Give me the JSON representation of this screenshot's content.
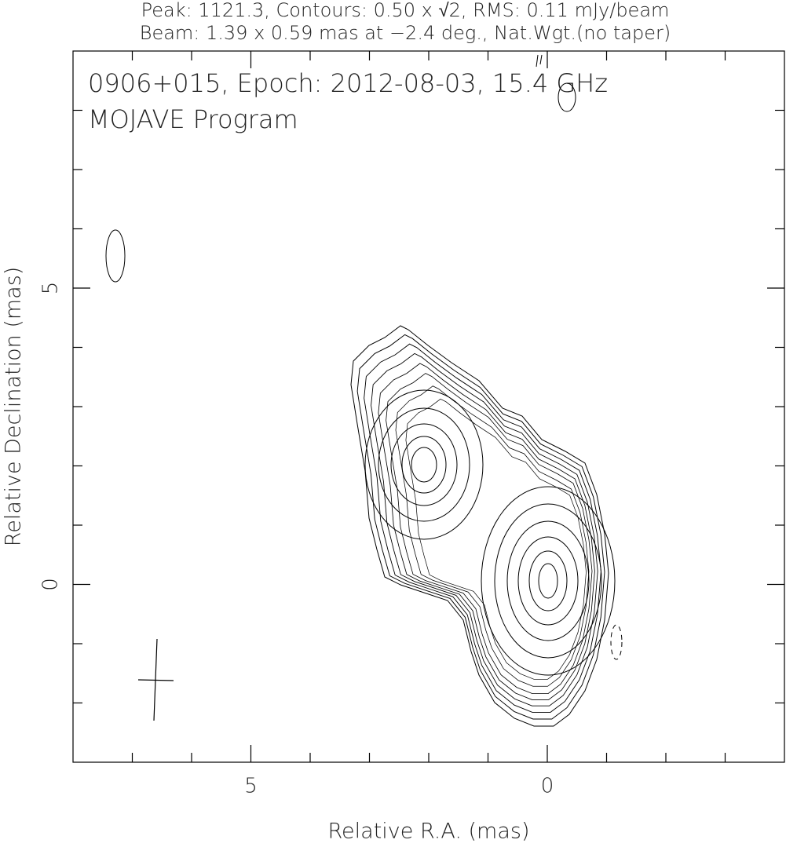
{
  "chart_data": {
    "type": "contour",
    "header": [
      "Peak: 1121.3, Contours: 0.50 x √2, RMS: 0.11 mJy/beam",
      "Beam: 1.39 x 0.59 mas at −2.4 deg., Nat.Wgt.(no taper)"
    ],
    "title": "0906+015, Epoch: 2012-08-03, 15.4 GHz",
    "subtitle": "MOJAVE Program",
    "xlabel": "Relative R.A. (mas)",
    "ylabel": "Relative Declination (mas)",
    "xlim": [
      8,
      -4
    ],
    "ylim": [
      -3,
      9
    ],
    "xticks": [
      5,
      0
    ],
    "yticks": [
      0,
      5
    ],
    "xminorticks": [
      7,
      6,
      4,
      3,
      2,
      1,
      -1,
      -2,
      -3
    ],
    "yminorticks": [
      -2,
      -1,
      1,
      2,
      3,
      4,
      6,
      7,
      8
    ]
  }
}
